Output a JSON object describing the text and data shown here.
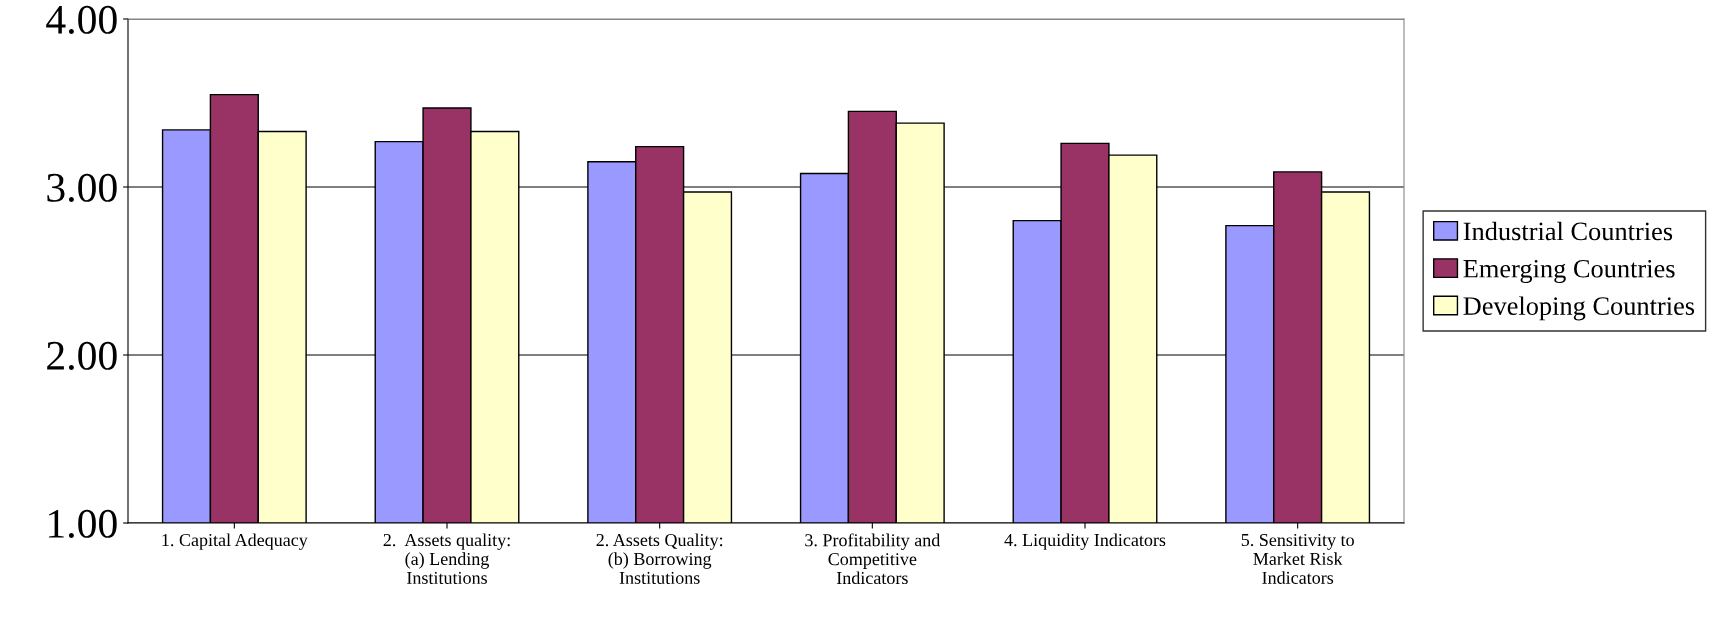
{
  "chart_data": {
    "type": "bar",
    "categories": [
      "1. Capital Adequacy",
      "2.  Assets quality:\n(a) Lending\nInstitutions",
      "2. Assets Quality:\n(b) Borrowing\nInstitutions",
      "3. Profitability and\nCompetitive\nIndicators",
      "4. Liquidity Indicators",
      "5. Sensitivity to\nMarket Risk\nIndicators"
    ],
    "series": [
      {
        "name": "Industrial Countries",
        "color": "#9999ff",
        "values": [
          3.34,
          3.27,
          3.15,
          3.08,
          2.8,
          2.77
        ]
      },
      {
        "name": "Emerging Countries",
        "color": "#993366",
        "values": [
          3.55,
          3.47,
          3.24,
          3.45,
          3.26,
          3.09
        ]
      },
      {
        "name": "Developing Countries",
        "color": "#ffffcc",
        "values": [
          3.33,
          3.33,
          2.97,
          3.38,
          3.19,
          2.97
        ]
      }
    ],
    "ylim": [
      1,
      4
    ],
    "yticks": [
      {
        "value": 1,
        "label": "1.00"
      },
      {
        "value": 2,
        "label": "2.00"
      },
      {
        "value": 3,
        "label": "3.00"
      },
      {
        "value": 4,
        "label": "4.00"
      }
    ],
    "grid": "y",
    "legend": "right"
  }
}
